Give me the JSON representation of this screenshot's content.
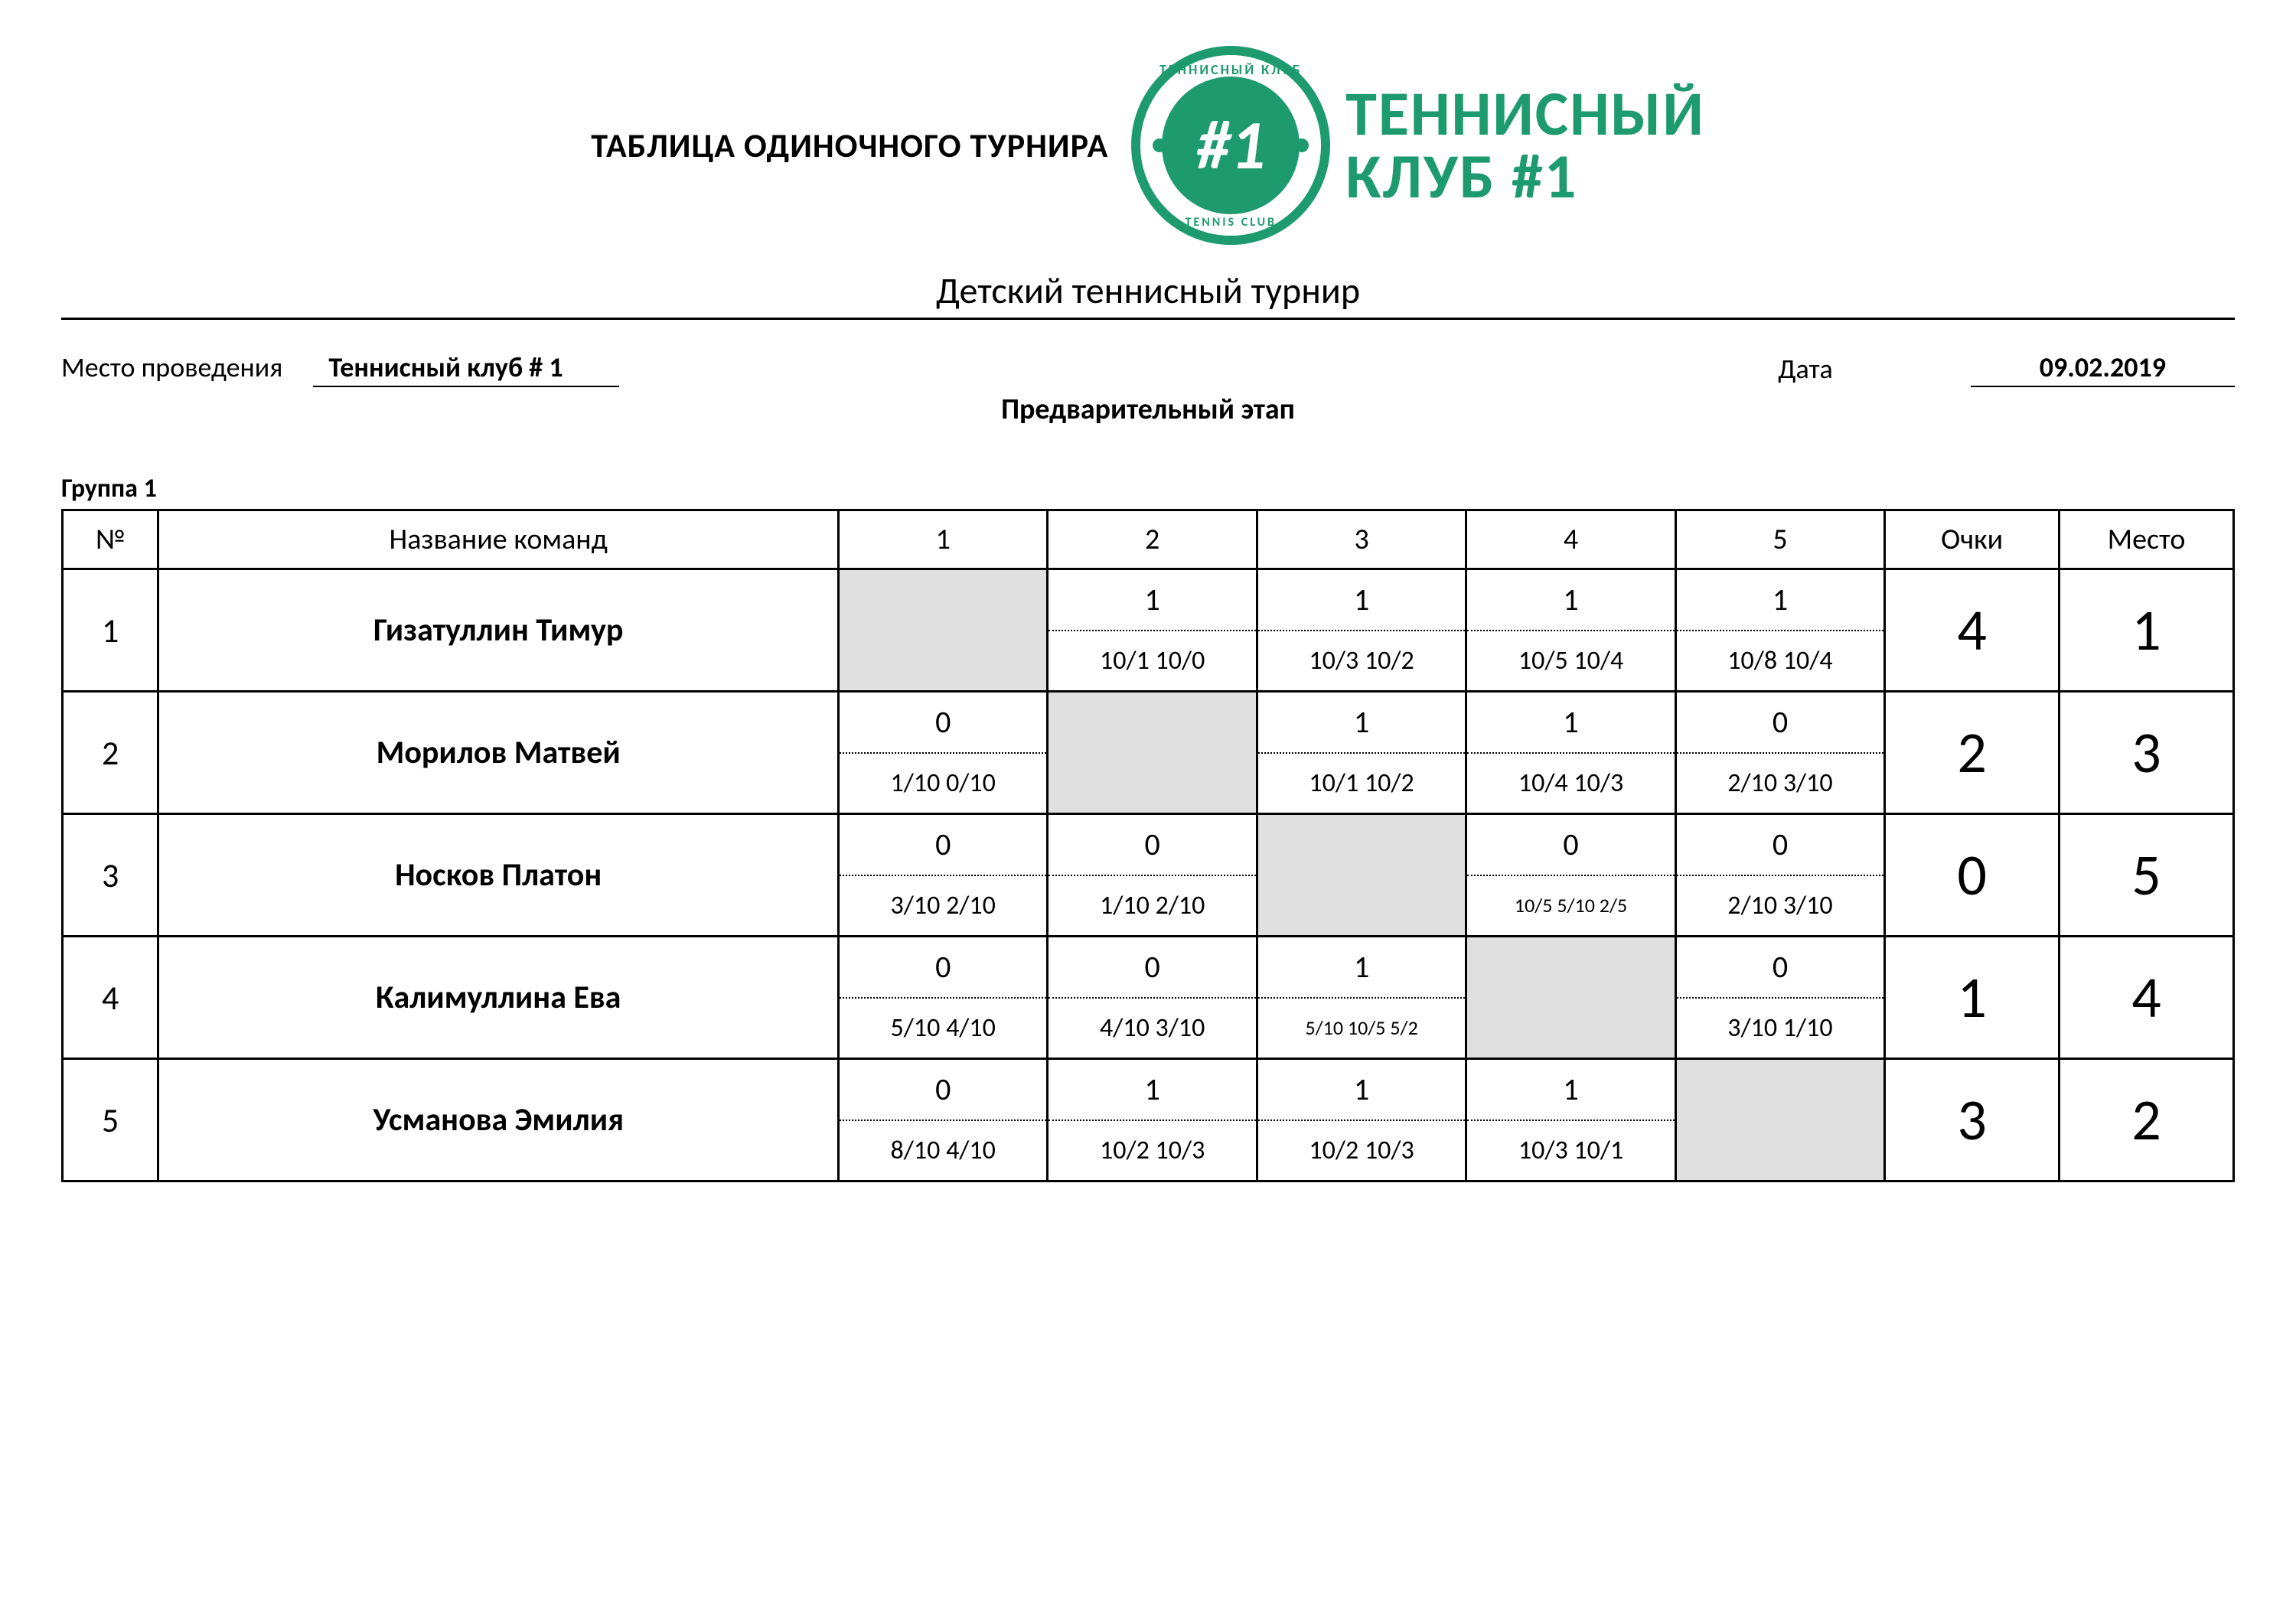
{
  "header": {
    "main_title": "ТАБЛИЦА ОДИНОЧНОГО ТУРНИРА",
    "logo": {
      "ring_top": "ТЕННИСНЫЙ КЛУБ",
      "ring_bottom": "TENNIS CLUB",
      "center": "#1"
    },
    "club_name_line1": "ТЕННИСНЫЙ",
    "club_name_line2": "КЛУБ #1",
    "accent_color": "#1e9b6e"
  },
  "subtitle": "Детский теннисный турнир",
  "meta": {
    "venue_label": "Место проведения",
    "venue_value": "Теннисный клуб # 1",
    "date_label": "Дата",
    "date_value": "09.02.2019",
    "stage": "Предварительный этап"
  },
  "group_label": "Группа 1",
  "table": {
    "headers": {
      "num": "№",
      "name": "Название команд",
      "c1": "1",
      "c2": "2",
      "c3": "3",
      "c4": "4",
      "c5": "5",
      "points": "Очки",
      "place": "Место"
    },
    "rows": [
      {
        "num": "1",
        "name": "Гизатуллин Тимур",
        "cells": [
          {
            "blocked": true
          },
          {
            "result": "1",
            "score": "10/1 10/0"
          },
          {
            "result": "1",
            "score": "10/3 10/2"
          },
          {
            "result": "1",
            "score": "10/5 10/4"
          },
          {
            "result": "1",
            "score": "10/8 10/4"
          }
        ],
        "points": "4",
        "place": "1"
      },
      {
        "num": "2",
        "name": "Морилов Матвей",
        "cells": [
          {
            "result": "0",
            "score": "1/10 0/10"
          },
          {
            "blocked": true
          },
          {
            "result": "1",
            "score": "10/1 10/2"
          },
          {
            "result": "1",
            "score": "10/4 10/3"
          },
          {
            "result": "0",
            "score": "2/10 3/10"
          }
        ],
        "points": "2",
        "place": "3"
      },
      {
        "num": "3",
        "name": "Носков Платон",
        "cells": [
          {
            "result": "0",
            "score": "3/10 2/10"
          },
          {
            "result": "0",
            "score": "1/10 2/10"
          },
          {
            "blocked": true
          },
          {
            "result": "0",
            "score": "10/5 5/10 2/5",
            "small": true
          },
          {
            "result": "0",
            "score": "2/10 3/10"
          }
        ],
        "points": "0",
        "place": "5"
      },
      {
        "num": "4",
        "name": "Калимуллина Ева",
        "cells": [
          {
            "result": "0",
            "score": "5/10 4/10"
          },
          {
            "result": "0",
            "score": "4/10 3/10"
          },
          {
            "result": "1",
            "score": "5/10 10/5 5/2",
            "small": true
          },
          {
            "blocked": true
          },
          {
            "result": "0",
            "score": "3/10 1/10"
          }
        ],
        "points": "1",
        "place": "4"
      },
      {
        "num": "5",
        "name": "Усманова Эмилия",
        "cells": [
          {
            "result": "0",
            "score": "8/10 4/10"
          },
          {
            "result": "1",
            "score": "10/2 10/3"
          },
          {
            "result": "1",
            "score": "10/2 10/3"
          },
          {
            "result": "1",
            "score": "10/3 10/1"
          },
          {
            "blocked": true
          }
        ],
        "points": "3",
        "place": "2"
      }
    ]
  }
}
